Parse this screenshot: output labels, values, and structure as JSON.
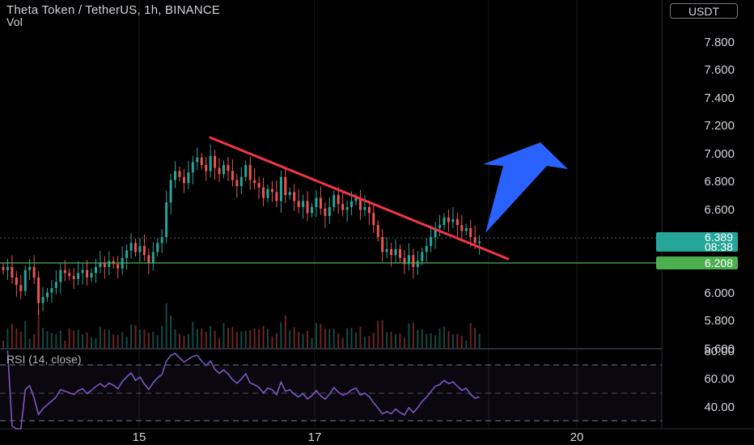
{
  "header": {
    "title": "Theta Token / TetherUS, 1h, BINANCE",
    "volume_label": "Vol",
    "currency_button": "USDT"
  },
  "colors": {
    "background": "#000000",
    "up": "#26a69a",
    "down": "#ef5350",
    "trendline": "#f23645",
    "arrow": "#2962ff",
    "support": "#4caf50",
    "rsi_line": "#7e57c2",
    "price_badge": "#26a69a"
  },
  "price_scale": {
    "ticks": [
      "7.800",
      "7.600",
      "7.400",
      "7.200",
      "7.000",
      "6.800",
      "6.600",
      "6.000",
      "5.800",
      "5.600"
    ]
  },
  "price_badge": {
    "price": "6.389",
    "countdown": "08:38"
  },
  "support_badge": {
    "price": "6.208"
  },
  "rsi_panel": {
    "label": "RSI (14, close)",
    "ticks": [
      "80.00",
      "60.00",
      "40.00"
    ]
  },
  "time_axis": {
    "ticks": [
      "15",
      "17",
      "20"
    ]
  },
  "chart_data": {
    "type": "candlestick",
    "symbol": "Theta Token / TetherUS",
    "interval": "1h",
    "exchange": "BINANCE",
    "y_range": [
      5.6,
      8.0
    ],
    "close_values": [
      6.2,
      6.22,
      6.15,
      6.1,
      6.06,
      6.2,
      6.22,
      6.15,
      5.98,
      6.02,
      6.05,
      6.08,
      6.12,
      6.2,
      6.18,
      6.16,
      6.14,
      6.18,
      6.2,
      6.15,
      6.18,
      6.22,
      6.25,
      6.22,
      6.26,
      6.24,
      6.21,
      6.28,
      6.33,
      6.38,
      6.32,
      6.36,
      6.3,
      6.25,
      6.32,
      6.38,
      6.42,
      6.65,
      6.8,
      6.86,
      6.82,
      6.78,
      6.85,
      6.92,
      6.95,
      6.9,
      6.86,
      6.96,
      6.88,
      6.84,
      6.9,
      6.86,
      6.8,
      6.76,
      6.82,
      6.9,
      6.8,
      6.78,
      6.75,
      6.68,
      6.74,
      6.72,
      6.66,
      6.82,
      6.7,
      6.72,
      6.66,
      6.62,
      6.66,
      6.58,
      6.62,
      6.68,
      6.61,
      6.56,
      6.62,
      6.7,
      6.64,
      6.6,
      6.62,
      6.66,
      6.68,
      6.6,
      6.62,
      6.58,
      6.5,
      6.42,
      6.32,
      6.34,
      6.3,
      6.34,
      6.28,
      6.24,
      6.3,
      6.22,
      6.26,
      6.32,
      6.36,
      6.42,
      6.48,
      6.5,
      6.55,
      6.52,
      6.54,
      6.5,
      6.46,
      6.48,
      6.42,
      6.38,
      6.39
    ],
    "last_price": 6.389,
    "support_level": 6.208,
    "rsi_range": [
      20,
      80
    ],
    "rsi_levels": [
      70,
      50,
      30
    ],
    "annotations": [
      "descending trendline",
      "breakout arrow",
      "support line 6.208"
    ]
  }
}
